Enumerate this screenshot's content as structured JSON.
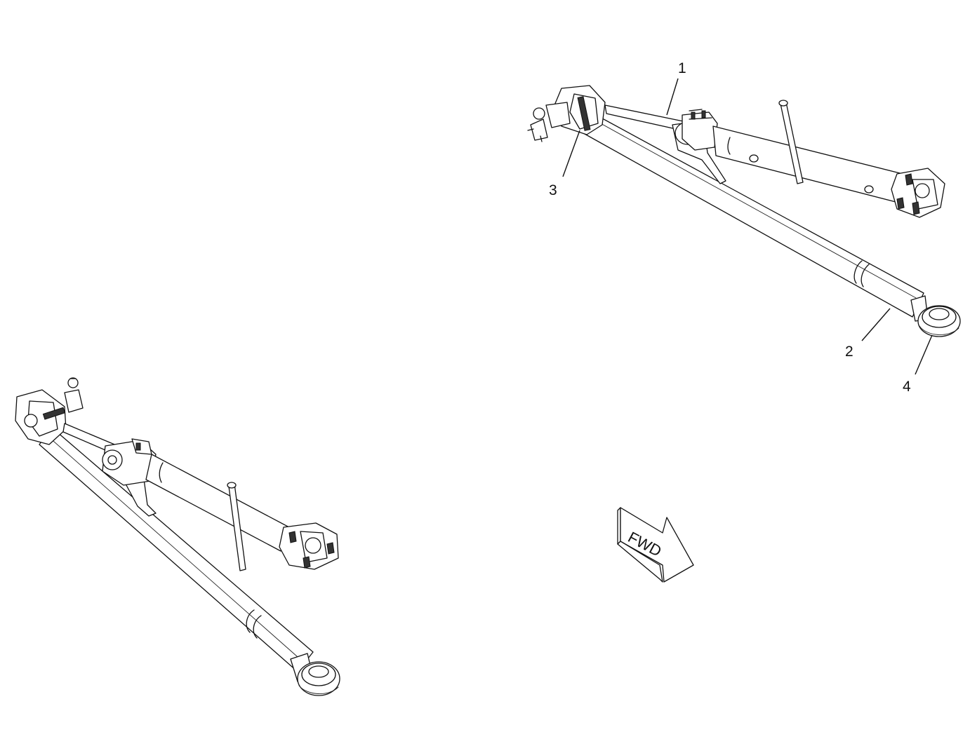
{
  "callouts": [
    {
      "id": "1",
      "label": "1"
    },
    {
      "id": "2",
      "label": "2"
    },
    {
      "id": "3",
      "label": "3"
    },
    {
      "id": "4",
      "label": "4"
    }
  ],
  "direction_arrow": {
    "label": "FWD"
  }
}
